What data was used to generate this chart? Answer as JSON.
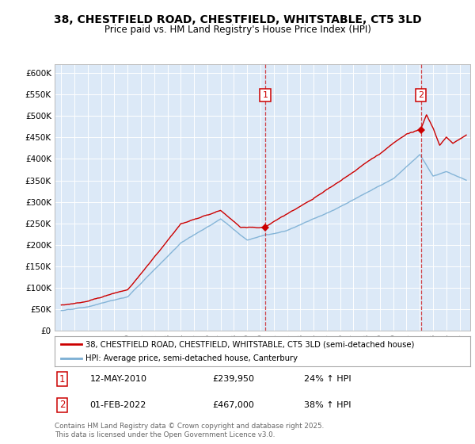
{
  "title": "38, CHESTFIELD ROAD, CHESTFIELD, WHITSTABLE, CT5 3LD",
  "subtitle": "Price paid vs. HM Land Registry's House Price Index (HPI)",
  "bg_color": "#dce9f7",
  "red_color": "#cc0000",
  "blue_color": "#7bafd4",
  "ylim": [
    0,
    620000
  ],
  "yticks": [
    0,
    50000,
    100000,
    150000,
    200000,
    250000,
    300000,
    350000,
    400000,
    450000,
    500000,
    550000,
    600000
  ],
  "ytick_labels": [
    "£0",
    "£50K",
    "£100K",
    "£150K",
    "£200K",
    "£250K",
    "£300K",
    "£350K",
    "£400K",
    "£450K",
    "£500K",
    "£550K",
    "£600K"
  ],
  "marker1_x": 2010.36,
  "marker1_y": 239950,
  "marker2_x": 2022.08,
  "marker2_y": 467000,
  "marker1_label": "12-MAY-2010",
  "marker1_price": "£239,950",
  "marker1_hpi": "24% ↑ HPI",
  "marker2_label": "01-FEB-2022",
  "marker2_price": "£467,000",
  "marker2_hpi": "38% ↑ HPI",
  "legend_line1": "38, CHESTFIELD ROAD, CHESTFIELD, WHITSTABLE, CT5 3LD (semi-detached house)",
  "legend_line2": "HPI: Average price, semi-detached house, Canterbury",
  "footer": "Contains HM Land Registry data © Crown copyright and database right 2025.\nThis data is licensed under the Open Government Licence v3.0.",
  "xlim_start": 1994.5,
  "xlim_end": 2025.8,
  "num_points": 1500
}
